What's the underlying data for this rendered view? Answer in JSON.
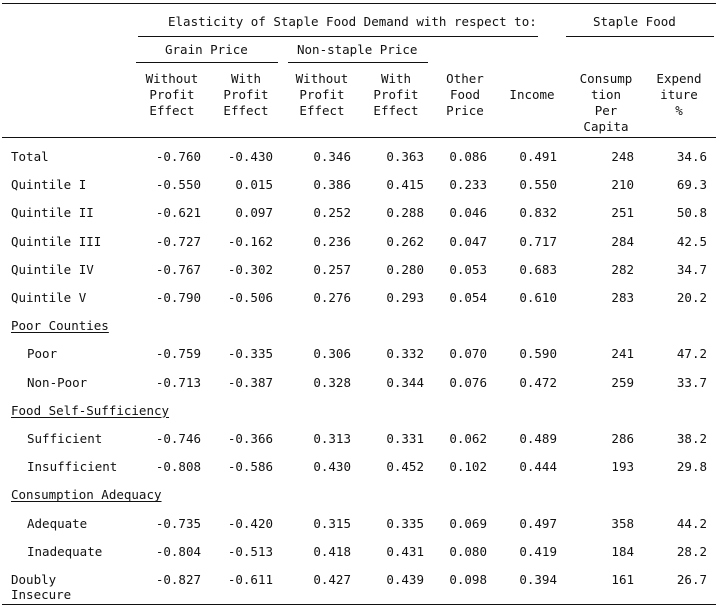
{
  "header": {
    "group_title": "Elasticity of Staple Food Demand with respect to:",
    "staple_title": "Staple Food",
    "grain_price": "Grain Price",
    "nonstaple_price": "Non-staple Price",
    "columns": [
      "Without\nProfit\nEffect",
      "With\nProfit\nEffect",
      "Without\nProfit\nEffect",
      "With\nProfit\nEffect",
      "Other\nFood\nPrice",
      "Income",
      "Consump\ntion\nPer\nCapita",
      "Expend\niture\n%"
    ]
  },
  "rows": [
    {
      "label": "Total",
      "values": [
        "-0.760",
        "-0.430",
        "0.346",
        "0.363",
        "0.086",
        "0.491",
        "248",
        "34.6"
      ]
    },
    {
      "label": "Quintile I",
      "values": [
        "-0.550",
        "0.015",
        "0.386",
        "0.415",
        "0.233",
        "0.550",
        "210",
        "69.3"
      ]
    },
    {
      "label": "Quintile II",
      "values": [
        "-0.621",
        "0.097",
        "0.252",
        "0.288",
        "0.046",
        "0.832",
        "251",
        "50.8"
      ]
    },
    {
      "label": "Quintile III",
      "values": [
        "-0.727",
        "-0.162",
        "0.236",
        "0.262",
        "0.047",
        "0.717",
        "284",
        "42.5"
      ]
    },
    {
      "label": "Quintile IV",
      "values": [
        "-0.767",
        "-0.302",
        "0.257",
        "0.280",
        "0.053",
        "0.683",
        "282",
        "34.7"
      ]
    },
    {
      "label": "Quintile V",
      "values": [
        "-0.790",
        "-0.506",
        "0.276",
        "0.293",
        "0.054",
        "0.610",
        "283",
        "20.2"
      ]
    }
  ],
  "sections": [
    {
      "title": "Poor Counties",
      "rows": [
        {
          "label": "Poor",
          "values": [
            "-0.759",
            "-0.335",
            "0.306",
            "0.332",
            "0.070",
            "0.590",
            "241",
            "47.2"
          ]
        },
        {
          "label": "Non-Poor",
          "values": [
            "-0.713",
            "-0.387",
            "0.328",
            "0.344",
            "0.076",
            "0.472",
            "259",
            "33.7"
          ]
        }
      ]
    },
    {
      "title": "Food Self-Sufficiency",
      "rows": [
        {
          "label": "Sufficient",
          "values": [
            "-0.746",
            "-0.366",
            "0.313",
            "0.331",
            "0.062",
            "0.489",
            "286",
            "38.2"
          ]
        },
        {
          "label": "Insufficient",
          "values": [
            "-0.808",
            "-0.586",
            "0.430",
            "0.452",
            "0.102",
            "0.444",
            "193",
            "29.8"
          ]
        }
      ]
    },
    {
      "title": "Consumption Adequacy",
      "rows": [
        {
          "label": "Adequate",
          "values": [
            "-0.735",
            "-0.420",
            "0.315",
            "0.335",
            "0.069",
            "0.497",
            "358",
            "44.2"
          ]
        },
        {
          "label": "Inadequate",
          "values": [
            "-0.804",
            "-0.513",
            "0.418",
            "0.431",
            "0.080",
            "0.419",
            "184",
            "28.2"
          ]
        }
      ]
    }
  ],
  "final_row": {
    "label_line1": "Doubly",
    "label_line2": "Insecure",
    "values": [
      "-0.827",
      "-0.611",
      "0.427",
      "0.439",
      "0.098",
      "0.394",
      "161",
      "26.7"
    ]
  }
}
